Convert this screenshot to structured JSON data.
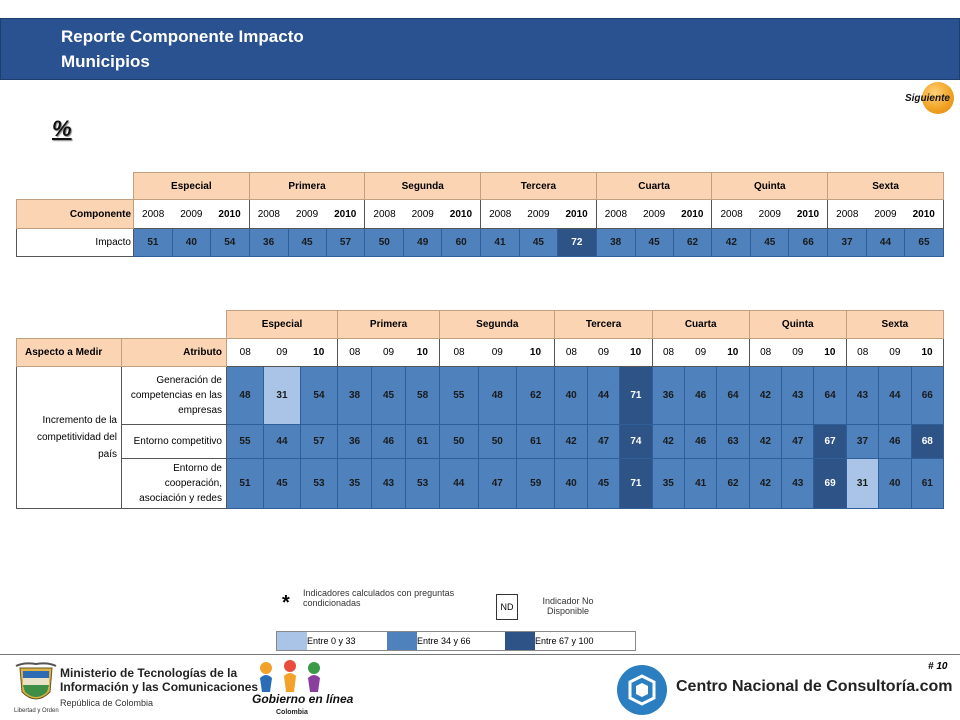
{
  "header": {
    "title_line1": "Reporte Componente Impacto",
    "title_line2": "Municipios"
  },
  "nav": {
    "next_label": "Siguiente"
  },
  "percent_symbol": "%",
  "colors": {
    "range_low": "#a9c4e6",
    "range_mid": "#4f81bd",
    "range_high": "#2e5487",
    "header_fill": "#fbd4b4",
    "header_bar": "#2a5190"
  },
  "table1": {
    "categories": [
      "Especial",
      "Primera",
      "Segunda",
      "Tercera",
      "Cuarta",
      "Quinta",
      "Sexta"
    ],
    "row_label_header": "Componente",
    "years": [
      "2008",
      "2009",
      "2010"
    ],
    "rows": [
      {
        "label": "Impacto",
        "values": [
          51,
          40,
          54,
          36,
          45,
          57,
          50,
          49,
          60,
          41,
          45,
          72,
          38,
          45,
          62,
          42,
          45,
          66,
          37,
          44,
          65
        ]
      }
    ]
  },
  "table2": {
    "categories": [
      "Especial",
      "Primera",
      "Segunda",
      "Tercera",
      "Cuarta",
      "Quinta",
      "Sexta"
    ],
    "aspect_header": "Aspecto a Medir",
    "attribute_header": "Atributo",
    "years": [
      "08",
      "09",
      "10"
    ],
    "aspect": "Incremento de la competitividad del país",
    "rows": [
      {
        "label": "Generación de competencias en las empresas",
        "values": [
          48,
          31,
          54,
          38,
          45,
          58,
          55,
          48,
          62,
          40,
          44,
          71,
          36,
          46,
          64,
          42,
          43,
          64,
          43,
          44,
          66
        ]
      },
      {
        "label": "Entorno competitivo",
        "values": [
          55,
          44,
          57,
          36,
          46,
          61,
          50,
          50,
          61,
          42,
          47,
          74,
          42,
          46,
          63,
          42,
          47,
          67,
          37,
          46,
          68
        ]
      },
      {
        "label": "Entorno de cooperación, asociación y redes",
        "values": [
          51,
          45,
          53,
          35,
          43,
          53,
          44,
          47,
          59,
          40,
          45,
          71,
          35,
          41,
          62,
          42,
          43,
          69,
          31,
          40,
          61
        ]
      }
    ]
  },
  "legend": {
    "star": "*",
    "star_text": "Indicadores calculados con preguntas condicionadas",
    "nd_box": "ND",
    "nd_text": "Indicador No Disponible",
    "scale": [
      "Entre 0 y 33",
      "Entre 34 y 66",
      "Entre 67 y 100"
    ]
  },
  "footer": {
    "page_number": "# 10",
    "ministry_line1": "Ministerio de Tecnologías de la",
    "ministry_line2": "Información y las Comunicaciones",
    "ministry_sub": "República de Colombia",
    "libertad": "Libertad y Orden",
    "gel_title": "Gobierno en línea",
    "gel_sub": "Colombia",
    "cnc_name": "Centro Nacional de Consultoría.com"
  }
}
